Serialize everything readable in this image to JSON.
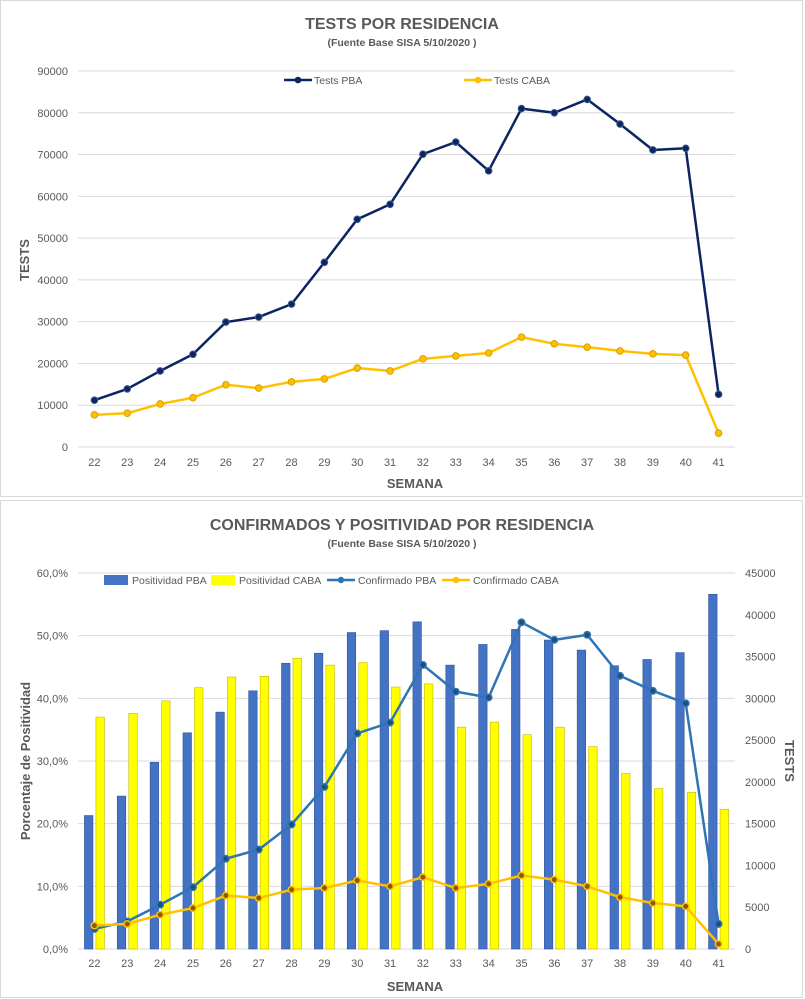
{
  "chart_data": [
    {
      "type": "line",
      "title": "TESTS POR RESIDENCIA",
      "subtitle": "(Fuente Base SISA  5/10/2020 )",
      "xlabel": "SEMANA",
      "ylabel": "TESTS",
      "ylim": [
        0,
        90000
      ],
      "yticks": [
        "0",
        "10000",
        "20000",
        "30000",
        "40000",
        "50000",
        "60000",
        "70000",
        "80000",
        "90000"
      ],
      "legend_position": "top",
      "categories": [
        "22",
        "23",
        "24",
        "25",
        "26",
        "27",
        "28",
        "29",
        "30",
        "31",
        "32",
        "33",
        "34",
        "35",
        "36",
        "37",
        "38",
        "39",
        "40",
        "41"
      ],
      "series": [
        {
          "name": "Tests PBA",
          "color": "#0c2461",
          "values": [
            11200,
            13900,
            18200,
            22200,
            29900,
            31100,
            34200,
            44200,
            54500,
            58100,
            70100,
            73000,
            66100,
            81000,
            80000,
            83200,
            77300,
            71100,
            71500,
            12600
          ]
        },
        {
          "name": "Tests CABA",
          "color": "#ffc000",
          "values": [
            7700,
            8100,
            10300,
            11800,
            14900,
            14100,
            15600,
            16300,
            18900,
            18200,
            21100,
            21800,
            22500,
            26300,
            24700,
            23900,
            23000,
            22300,
            22000,
            3300
          ]
        }
      ]
    },
    {
      "type": "bar+line",
      "title": "CONFIRMADOS Y POSITIVIDAD POR RESIDENCIA",
      "subtitle": "(Fuente Base SISA    5/10/2020 )",
      "xlabel": "SEMANA",
      "ylabel": "Porcentaje de Positividad",
      "y2label": "TESTS",
      "ylim": [
        0,
        60
      ],
      "y2lim": [
        0,
        45000
      ],
      "yticks": [
        "0,0%",
        "10,0%",
        "20,0%",
        "30,0%",
        "40,0%",
        "50,0%",
        "60,0%"
      ],
      "y2ticks": [
        "0",
        "5000",
        "10000",
        "15000",
        "20000",
        "25000",
        "30000",
        "35000",
        "40000",
        "45000"
      ],
      "legend_position": "top",
      "categories": [
        "22",
        "23",
        "24",
        "25",
        "26",
        "27",
        "28",
        "29",
        "30",
        "31",
        "32",
        "33",
        "34",
        "35",
        "36",
        "37",
        "38",
        "39",
        "40",
        "41"
      ],
      "bar_series": [
        {
          "name": "Positividad PBA",
          "color": "#4472c4",
          "values": [
            21.3,
            24.4,
            29.8,
            34.5,
            37.8,
            41.2,
            45.6,
            47.2,
            50.5,
            50.8,
            52.2,
            45.3,
            48.6,
            51.0,
            49.3,
            47.7,
            45.2,
            46.2,
            47.3,
            56.6
          ]
        },
        {
          "name": "Positividad CABA",
          "color": "#ffff00",
          "values": [
            37.0,
            37.6,
            39.6,
            41.7,
            43.4,
            43.5,
            46.4,
            45.3,
            45.7,
            41.8,
            42.3,
            35.4,
            36.2,
            34.2,
            35.4,
            32.3,
            28.0,
            25.6,
            25.0,
            22.3
          ]
        }
      ],
      "line_series": [
        {
          "name": "Confirmado PBA",
          "color": "#2e75b6",
          "axis": "right",
          "values": [
            2400,
            3300,
            5300,
            7400,
            10800,
            11900,
            14900,
            19400,
            25800,
            27100,
            34000,
            30800,
            30100,
            39100,
            37000,
            37600,
            32700,
            30900,
            29400,
            3000
          ]
        },
        {
          "name": "Confirmado CABA",
          "color": "#ffc000",
          "axis": "right",
          "values": [
            2800,
            3000,
            4100,
            4900,
            6400,
            6100,
            7100,
            7300,
            8200,
            7500,
            8600,
            7300,
            7800,
            8800,
            8300,
            7500,
            6200,
            5500,
            5100,
            600
          ]
        }
      ]
    }
  ]
}
